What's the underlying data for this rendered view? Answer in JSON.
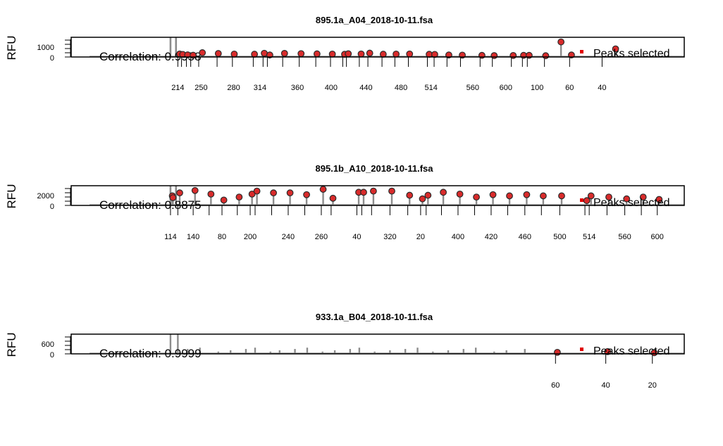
{
  "colors": {
    "trace": "#8c8c8c",
    "peak_fill": "#d92b2b",
    "peak_stroke": "#2a2a2a",
    "legend_marker": "#e00000",
    "frame": "#000000"
  },
  "chart_data": [
    {
      "type": "line",
      "title": "895.1a_A04_2018-10-11.fsa",
      "ylabel": "RFU",
      "yticks": [
        "1000",
        "0"
      ],
      "ylim": [
        0,
        1700
      ],
      "xlim": [
        0,
        1000
      ],
      "correlation_label": "Correlation: 0.9958",
      "legend": {
        "label": "Peaks selected",
        "position": "right"
      },
      "size_labels": [
        {
          "x": 174,
          "label": "214"
        },
        {
          "x": 212,
          "label": "250"
        },
        {
          "x": 265,
          "label": "280"
        },
        {
          "x": 308,
          "label": "314"
        },
        {
          "x": 369,
          "label": "360"
        },
        {
          "x": 424,
          "label": "400"
        },
        {
          "x": 481,
          "label": "440"
        },
        {
          "x": 538,
          "label": "480"
        },
        {
          "x": 587,
          "label": "514"
        },
        {
          "x": 655,
          "label": "560"
        },
        {
          "x": 709,
          "label": "600"
        },
        {
          "x": 760,
          "label": "100"
        },
        {
          "x": 813,
          "label": "60"
        },
        {
          "x": 866,
          "label": "40"
        }
      ],
      "size_ticks": [
        174,
        180,
        188,
        195,
        208,
        238,
        263,
        297,
        313,
        320,
        345,
        372,
        399,
        423,
        443,
        449,
        470,
        484,
        507,
        528,
        550,
        581,
        592,
        613,
        635,
        667,
        687,
        718,
        736,
        744,
        772,
        813,
        866
      ],
      "peaks": [
        {
          "x": 177,
          "y": 260
        },
        {
          "x": 182,
          "y": 220
        },
        {
          "x": 190,
          "y": 180
        },
        {
          "x": 199,
          "y": 150
        },
        {
          "x": 214,
          "y": 370
        },
        {
          "x": 240,
          "y": 300
        },
        {
          "x": 266,
          "y": 250
        },
        {
          "x": 299,
          "y": 240
        },
        {
          "x": 315,
          "y": 320
        },
        {
          "x": 324,
          "y": 170
        },
        {
          "x": 348,
          "y": 310
        },
        {
          "x": 375,
          "y": 290
        },
        {
          "x": 401,
          "y": 270
        },
        {
          "x": 426,
          "y": 250
        },
        {
          "x": 446,
          "y": 230
        },
        {
          "x": 452,
          "y": 280
        },
        {
          "x": 473,
          "y": 260
        },
        {
          "x": 487,
          "y": 330
        },
        {
          "x": 509,
          "y": 240
        },
        {
          "x": 530,
          "y": 250
        },
        {
          "x": 552,
          "y": 260
        },
        {
          "x": 584,
          "y": 230
        },
        {
          "x": 593,
          "y": 220
        },
        {
          "x": 616,
          "y": 170
        },
        {
          "x": 638,
          "y": 160
        },
        {
          "x": 670,
          "y": 140
        },
        {
          "x": 690,
          "y": 120
        },
        {
          "x": 721,
          "y": 130
        },
        {
          "x": 738,
          "y": 140
        },
        {
          "x": 747,
          "y": 140
        },
        {
          "x": 774,
          "y": 110
        },
        {
          "x": 799,
          "y": 1300
        },
        {
          "x": 816,
          "y": 170
        },
        {
          "x": 888,
          "y": 700
        }
      ]
    },
    {
      "type": "line",
      "title": "895.1b_A10_2018-10-11.fsa",
      "ylabel": "RFU",
      "yticks": [
        "2000",
        "0"
      ],
      "ylim": [
        0,
        3300
      ],
      "xlim": [
        0,
        1000
      ],
      "correlation_label": "Correlation: 0.8875",
      "legend": {
        "label": "Peaks selected",
        "position": "right"
      },
      "size_labels": [
        {
          "x": 162,
          "label": "114"
        },
        {
          "x": 199,
          "label": "140"
        },
        {
          "x": 246,
          "label": "80"
        },
        {
          "x": 292,
          "label": "200"
        },
        {
          "x": 354,
          "label": "240"
        },
        {
          "x": 408,
          "label": "260"
        },
        {
          "x": 466,
          "label": "40"
        },
        {
          "x": 520,
          "label": "320"
        },
        {
          "x": 570,
          "label": "20"
        },
        {
          "x": 631,
          "label": "400"
        },
        {
          "x": 685,
          "label": "420"
        },
        {
          "x": 740,
          "label": "460"
        },
        {
          "x": 797,
          "label": "500"
        },
        {
          "x": 845,
          "label": "514"
        },
        {
          "x": 903,
          "label": "560"
        },
        {
          "x": 956,
          "label": "600"
        }
      ],
      "size_ticks": [
        162,
        174,
        199,
        225,
        246,
        271,
        292,
        300,
        327,
        354,
        381,
        408,
        424,
        466,
        474,
        490,
        520,
        549,
        570,
        579,
        604,
        631,
        658,
        685,
        712,
        740,
        767,
        797,
        838,
        845,
        874,
        903,
        930,
        956
      ],
      "peaks": [
        {
          "x": 165,
          "y": 1600
        },
        {
          "x": 166,
          "y": 1300
        },
        {
          "x": 177,
          "y": 2100
        },
        {
          "x": 202,
          "y": 2500
        },
        {
          "x": 228,
          "y": 1900
        },
        {
          "x": 249,
          "y": 900
        },
        {
          "x": 274,
          "y": 1400
        },
        {
          "x": 295,
          "y": 1900
        },
        {
          "x": 303,
          "y": 2400
        },
        {
          "x": 330,
          "y": 2100
        },
        {
          "x": 357,
          "y": 2100
        },
        {
          "x": 384,
          "y": 1800
        },
        {
          "x": 411,
          "y": 2700
        },
        {
          "x": 427,
          "y": 1200
        },
        {
          "x": 469,
          "y": 2200
        },
        {
          "x": 477,
          "y": 2200
        },
        {
          "x": 493,
          "y": 2400
        },
        {
          "x": 523,
          "y": 2400
        },
        {
          "x": 552,
          "y": 1700
        },
        {
          "x": 573,
          "y": 1100
        },
        {
          "x": 582,
          "y": 1700
        },
        {
          "x": 607,
          "y": 2200
        },
        {
          "x": 634,
          "y": 1900
        },
        {
          "x": 661,
          "y": 1400
        },
        {
          "x": 688,
          "y": 1800
        },
        {
          "x": 715,
          "y": 1600
        },
        {
          "x": 743,
          "y": 1800
        },
        {
          "x": 770,
          "y": 1600
        },
        {
          "x": 800,
          "y": 1600
        },
        {
          "x": 841,
          "y": 800
        },
        {
          "x": 848,
          "y": 1600
        },
        {
          "x": 877,
          "y": 1400
        },
        {
          "x": 906,
          "y": 1100
        },
        {
          "x": 933,
          "y": 1400
        },
        {
          "x": 959,
          "y": 1000
        }
      ]
    },
    {
      "type": "line",
      "title": "933.1a_B04_2018-10-11.fsa",
      "ylabel": "RFU",
      "yticks": [
        "600",
        "0"
      ],
      "ylim": [
        0,
        1050
      ],
      "xlim": [
        0,
        1000
      ],
      "correlation_label": "Correlation: 0.9999",
      "legend": {
        "label": "Peaks selected",
        "position": "right"
      },
      "size_labels": [
        {
          "x": 790,
          "label": "60"
        },
        {
          "x": 872,
          "label": "40"
        },
        {
          "x": 948,
          "label": "20"
        }
      ],
      "size_ticks": [
        790,
        872,
        948
      ],
      "peaks": [
        {
          "x": 793,
          "y": 80
        },
        {
          "x": 875,
          "y": 120
        },
        {
          "x": 951,
          "y": 60
        }
      ]
    }
  ]
}
